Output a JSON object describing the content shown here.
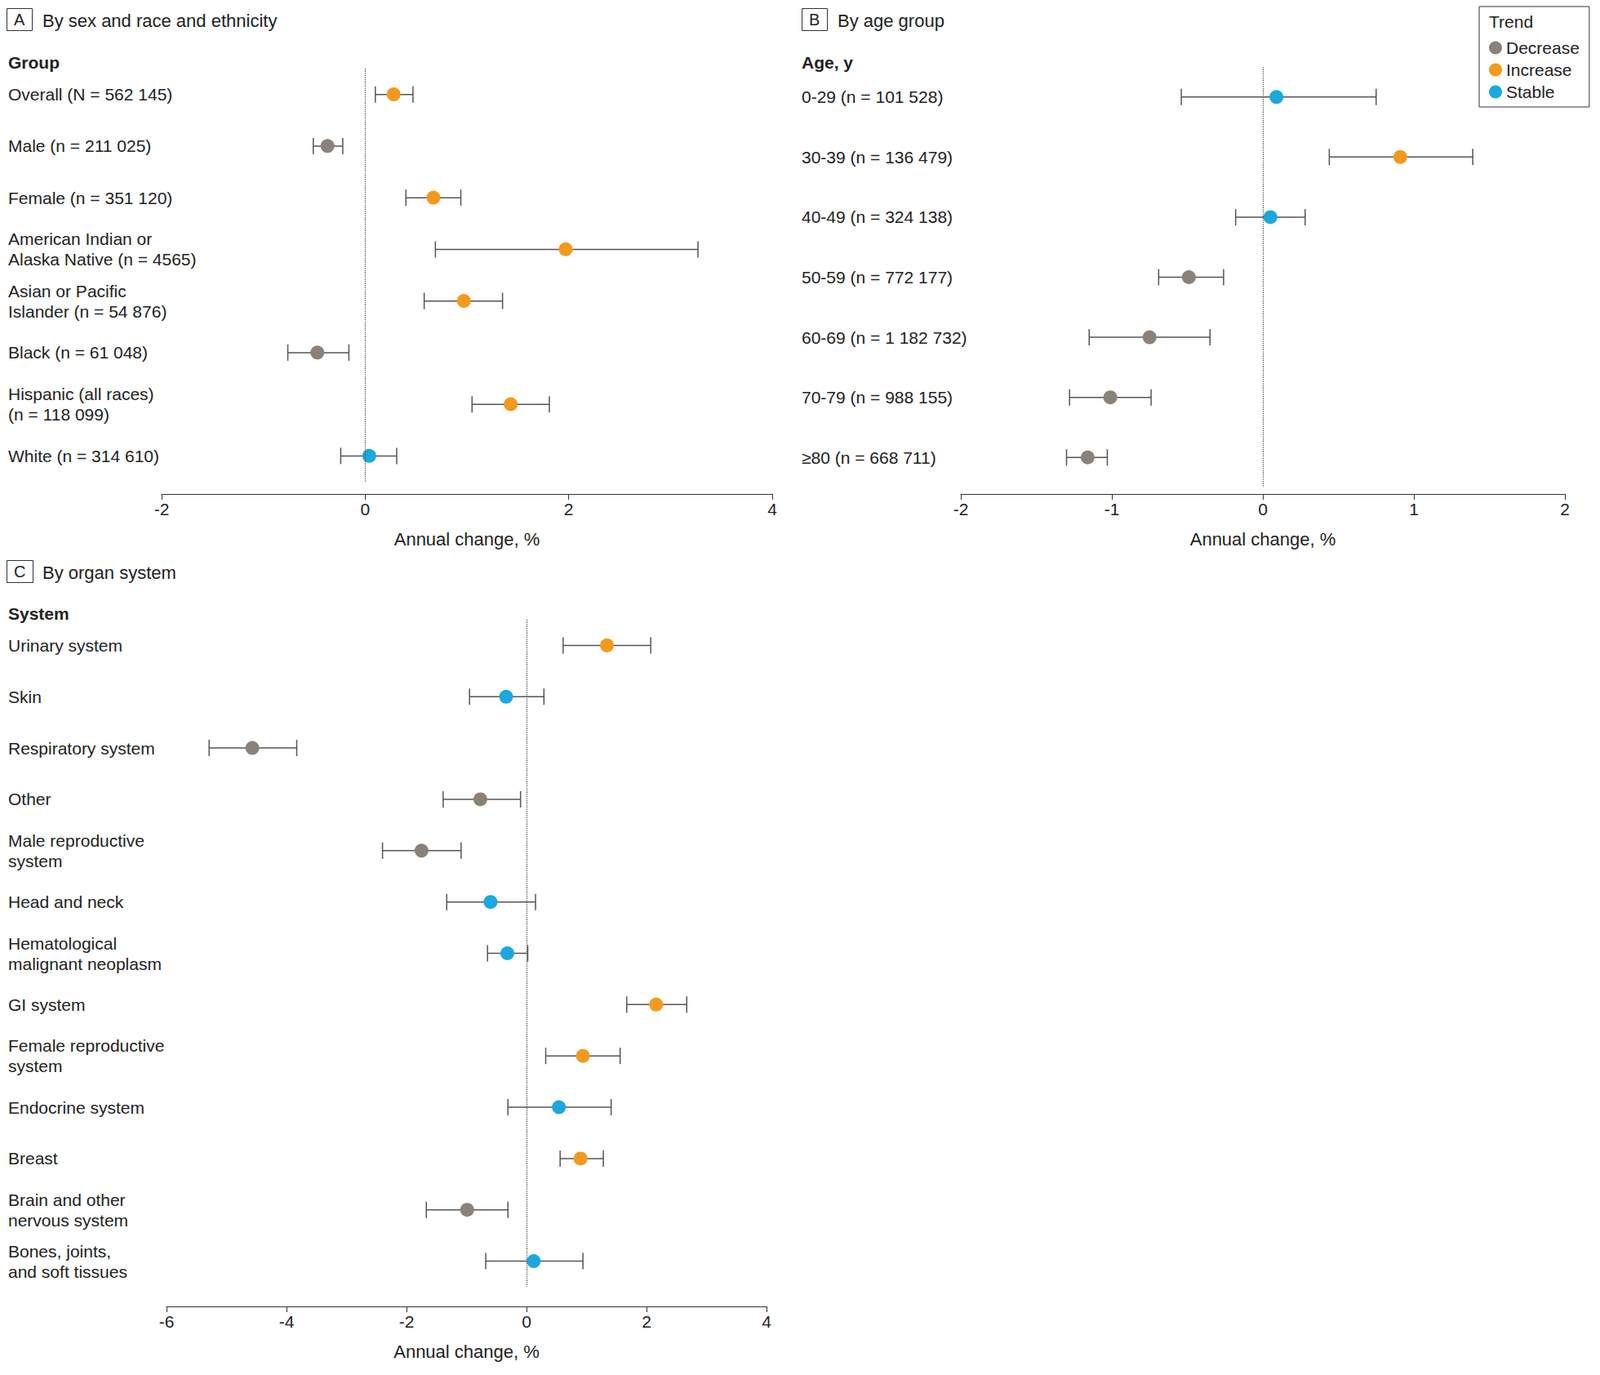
{
  "chart_data": [
    {
      "type": "scatter",
      "panel": "A",
      "title": "By sex and race and ethnicity",
      "y_label": "Group",
      "x_label": "Annual change, %",
      "categories": [
        "Overall (N = 562 145)",
        "Male (n = 211 025)",
        "Female (n = 351 120)",
        "American Indian or\nAlaska Native (n = 4565)",
        "Asian or Pacific\nIslander (n = 54 876)",
        "Black (n = 61 048)",
        "Hispanic (all races)\n(n = 118 099)",
        "White (n = 314 610)"
      ],
      "series": [
        {
          "name": "Decrease",
          "color": "#8a8279",
          "values": [
            null,
            -0.37,
            null,
            null,
            null,
            -0.47,
            null,
            null
          ],
          "ci_low": [
            null,
            -0.51,
            null,
            null,
            null,
            -0.76,
            null,
            null
          ],
          "ci_high": [
            null,
            -0.22,
            null,
            null,
            null,
            -0.16,
            null,
            null
          ]
        },
        {
          "name": "Increase",
          "color": "#f39a1e",
          "values": [
            0.28,
            null,
            0.67,
            1.97,
            0.97,
            null,
            1.43,
            null
          ],
          "ci_low": [
            0.1,
            null,
            0.4,
            0.69,
            0.58,
            null,
            1.05,
            null
          ],
          "ci_high": [
            0.47,
            null,
            0.94,
            3.27,
            1.35,
            null,
            1.81,
            null
          ]
        },
        {
          "name": "Stable",
          "color": "#1ba8de",
          "values": [
            null,
            null,
            null,
            null,
            null,
            null,
            null,
            0.04
          ],
          "ci_low": [
            null,
            null,
            null,
            null,
            null,
            null,
            null,
            -0.24
          ],
          "ci_high": [
            null,
            null,
            null,
            null,
            null,
            null,
            null,
            0.31
          ]
        }
      ],
      "xlim": [
        -2,
        4
      ],
      "xticks": [
        -2,
        0,
        2,
        4
      ],
      "ref_line": 0,
      "grid": false
    },
    {
      "type": "scatter",
      "panel": "B",
      "title": "By age group",
      "y_label": "Age, y",
      "x_label": "Annual change, %",
      "categories": [
        "0-29 (n = 101 528)",
        "30-39 (n = 136 479)",
        "40-49 (n = 324 138)",
        "50-59 (n = 772 177)",
        "60-69 (n = 1 182 732)",
        "70-79 (n = 988 155)",
        "≥80 (n = 668 711)"
      ],
      "series": [
        {
          "name": "Decrease",
          "color": "#8a8279",
          "values": [
            null,
            null,
            null,
            -0.49,
            -0.75,
            -1.01,
            -1.16
          ],
          "ci_low": [
            null,
            null,
            null,
            -0.69,
            -1.15,
            -1.28,
            -1.3
          ],
          "ci_high": [
            null,
            null,
            null,
            -0.26,
            -0.35,
            -0.74,
            -1.03
          ]
        },
        {
          "name": "Increase",
          "color": "#f39a1e",
          "values": [
            null,
            0.91,
            null,
            null,
            null,
            null,
            null
          ],
          "ci_low": [
            null,
            0.44,
            null,
            null,
            null,
            null,
            null
          ],
          "ci_high": [
            null,
            1.39,
            null,
            null,
            null,
            null,
            null
          ]
        },
        {
          "name": "Stable",
          "color": "#1ba8de",
          "values": [
            0.09,
            null,
            0.05,
            null,
            null,
            null,
            null
          ],
          "ci_low": [
            -0.54,
            null,
            -0.18,
            null,
            null,
            null,
            null
          ],
          "ci_high": [
            0.75,
            null,
            0.28,
            null,
            null,
            null,
            null
          ]
        }
      ],
      "xlim": [
        -2,
        2
      ],
      "xticks": [
        -2,
        -1,
        0,
        1,
        2
      ],
      "ref_line": 0,
      "grid": false,
      "legend": "top-right",
      "legend_title": "Trend"
    },
    {
      "type": "scatter",
      "panel": "C",
      "title": "By organ system",
      "y_label": "System",
      "x_label": "Annual change, %",
      "categories": [
        "Urinary system",
        "Skin",
        "Respiratory system",
        "Other",
        "Male reproductive\nsystem",
        "Head and neck",
        "Hematological\nmalignant neoplasm",
        "GI system",
        "Female reproductive\nsystem",
        "Endocrine system",
        "Breast",
        "Brain and other\nnervous system",
        "Bones, joints,\nand soft tissues"
      ],
      "series": [
        {
          "name": "Decrease",
          "color": "#8a8279",
          "values": [
            null,
            null,
            -4.57,
            -0.77,
            -1.75,
            null,
            null,
            null,
            null,
            null,
            null,
            -0.99,
            null
          ],
          "ci_low": [
            null,
            null,
            -5.29,
            -1.39,
            -2.4,
            null,
            null,
            null,
            null,
            null,
            null,
            -1.67,
            null
          ],
          "ci_high": [
            null,
            null,
            -3.83,
            -0.1,
            -1.09,
            null,
            null,
            null,
            null,
            null,
            null,
            -0.31,
            null
          ]
        },
        {
          "name": "Increase",
          "color": "#f39a1e",
          "values": [
            1.34,
            null,
            null,
            null,
            null,
            null,
            null,
            2.16,
            0.94,
            null,
            0.9,
            null,
            null
          ],
          "ci_low": [
            0.61,
            null,
            null,
            null,
            null,
            null,
            null,
            1.67,
            0.32,
            null,
            0.56,
            null,
            null
          ],
          "ci_high": [
            2.07,
            null,
            null,
            null,
            null,
            null,
            null,
            2.67,
            1.56,
            null,
            1.28,
            null,
            null
          ]
        },
        {
          "name": "Stable",
          "color": "#1ba8de",
          "values": [
            null,
            -0.34,
            null,
            null,
            null,
            -0.6,
            -0.32,
            null,
            null,
            0.54,
            null,
            null,
            0.12
          ],
          "ci_low": [
            null,
            -0.95,
            null,
            null,
            null,
            -1.33,
            -0.65,
            null,
            null,
            -0.31,
            null,
            null,
            -0.68
          ],
          "ci_high": [
            null,
            0.29,
            null,
            null,
            null,
            0.15,
            0.02,
            null,
            null,
            1.41,
            null,
            null,
            0.94
          ]
        }
      ],
      "xlim": [
        -6,
        4
      ],
      "xticks": [
        -6,
        -4,
        -2,
        0,
        2,
        4
      ],
      "ref_line": 0,
      "grid": false
    }
  ]
}
